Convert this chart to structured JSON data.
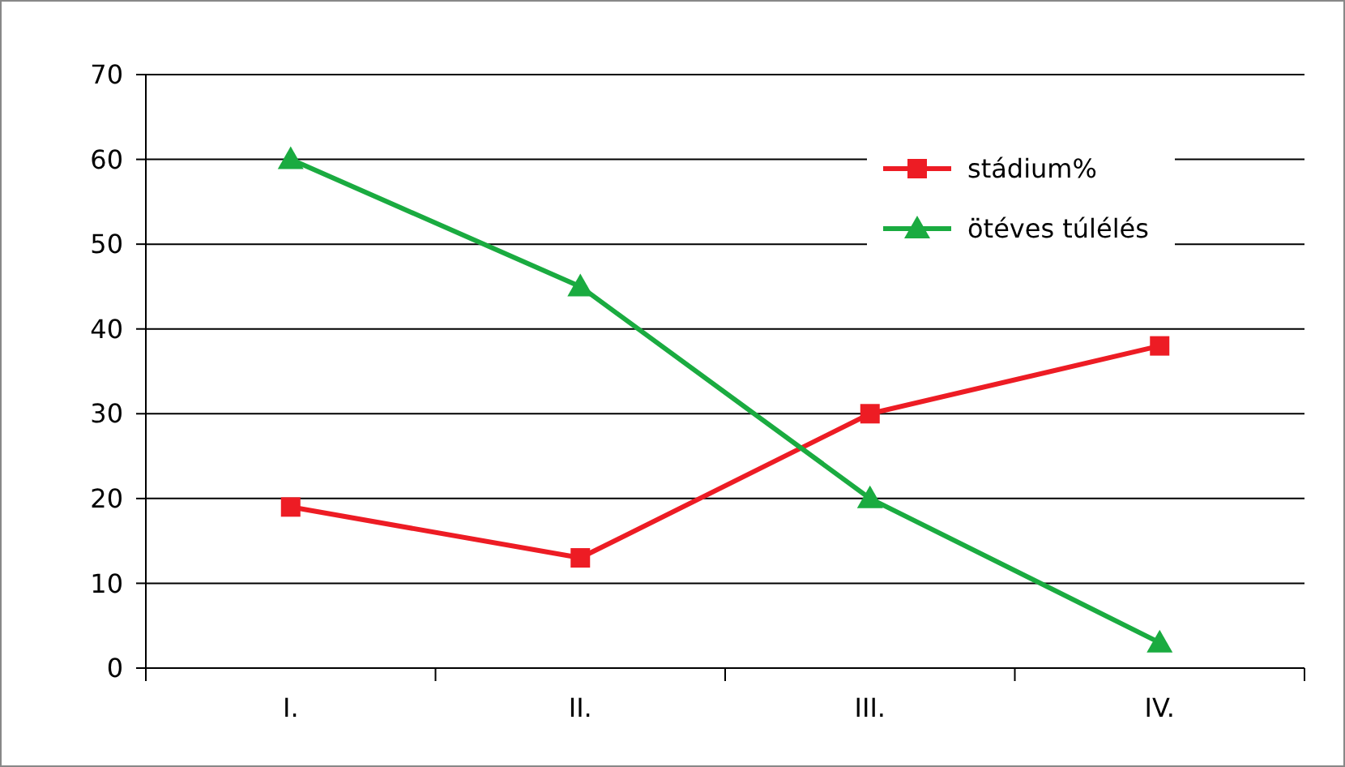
{
  "chart_data": {
    "type": "line",
    "categories": [
      "I.",
      "II.",
      "III.",
      "IV."
    ],
    "series": [
      {
        "name": "stádium%",
        "color": "#ed1c24",
        "values": [
          19,
          13,
          30,
          38
        ],
        "marker": "square"
      },
      {
        "name": "ötéves túlélés",
        "color": "#1aab40",
        "values": [
          60,
          45,
          20,
          3
        ],
        "marker": "triangle"
      }
    ],
    "ylim": [
      0,
      70
    ],
    "yticks": [
      0,
      10,
      20,
      30,
      40,
      50,
      60,
      70
    ],
    "grid": "y",
    "legend": "top right",
    "line_style": "solid"
  }
}
